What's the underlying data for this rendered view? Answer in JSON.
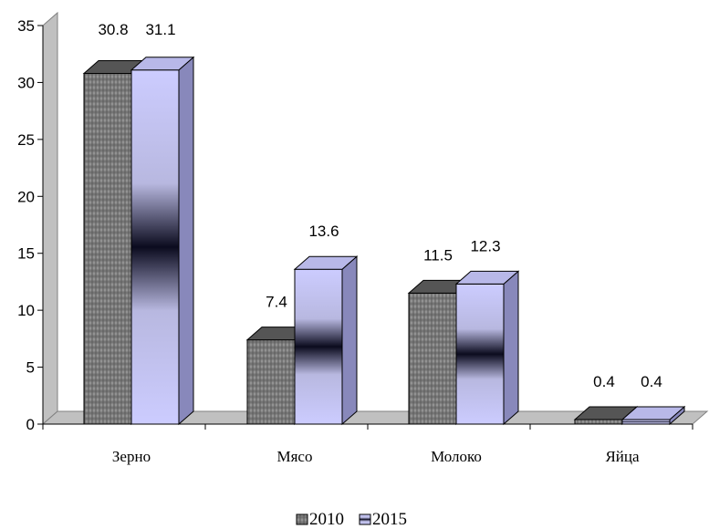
{
  "chart_data": {
    "type": "bar",
    "title": "",
    "xlabel": "",
    "ylabel": "",
    "categories": [
      "Зерно",
      "Мясо",
      "Молоко",
      "Яйца"
    ],
    "series": [
      {
        "name": "2010",
        "values": [
          30.8,
          7.4,
          11.5,
          0.4
        ],
        "color": "#808080"
      },
      {
        "name": "2015",
        "values": [
          31.1,
          13.6,
          12.3,
          0.4
        ],
        "color": "#ccccff"
      }
    ],
    "ylim": [
      0,
      35
    ],
    "yticks": [
      "0",
      "5",
      "10",
      "15",
      "20",
      "25",
      "30",
      "35"
    ],
    "data_labels": [
      [
        "30.8",
        "7.4",
        "11.5",
        "0.4"
      ],
      [
        "31.1",
        "13.6",
        "12.3",
        "0.4"
      ]
    ],
    "legend_position": "bottom",
    "style": "3d-clustered-column",
    "grid": false
  }
}
